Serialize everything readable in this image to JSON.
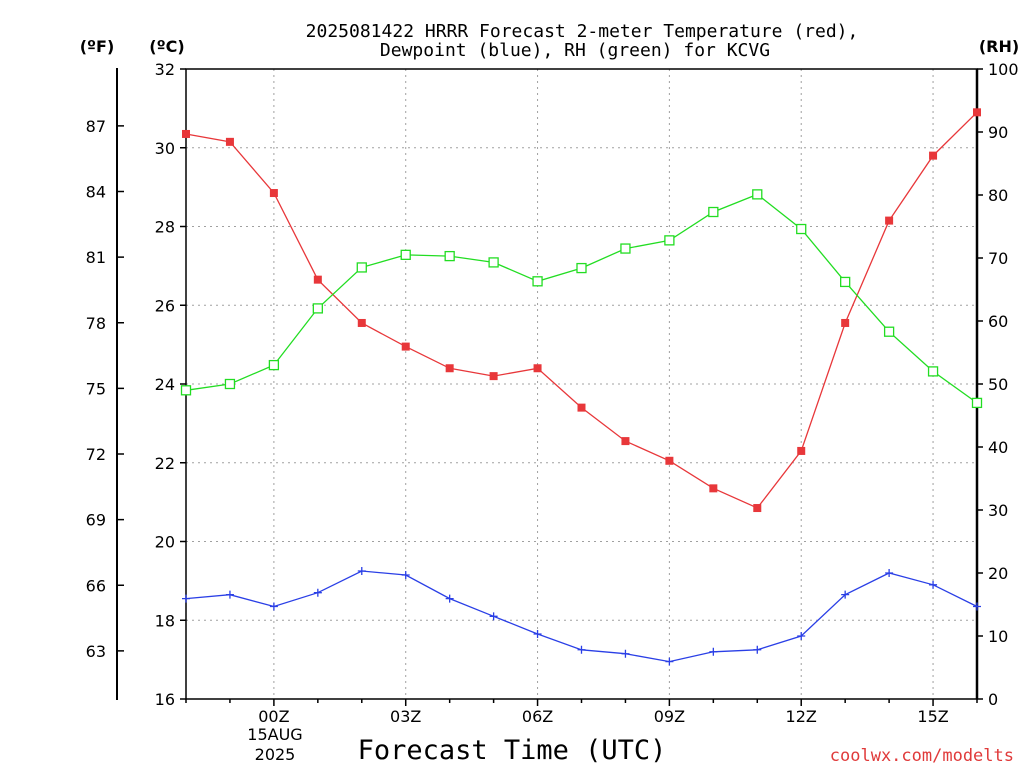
{
  "title_line1": "2025081422 HRRR Forecast 2-meter Temperature (red),",
  "title_line2": "Dewpoint (blue), RH (green) for KCVG",
  "unit_f": "(ºF)",
  "unit_c": "(ºC)",
  "unit_rh": "(RH)",
  "xlabel": "Forecast Time (UTC)",
  "watermark": "coolwx.com/modelts",
  "date_line1": "15AUG",
  "date_line2": "2025",
  "colors": {
    "temperature": "#e8373a",
    "dewpoint": "#2a3fe6",
    "rh": "#22dd22"
  },
  "chart_data": {
    "type": "line",
    "title": "2025081422 HRRR Forecast 2-meter Temperature (red), Dewpoint (blue), RH (green) for KCVG",
    "xlabel": "Forecast Time (UTC)",
    "x": [
      "22Z",
      "23Z",
      "00Z",
      "01Z",
      "02Z",
      "03Z",
      "04Z",
      "05Z",
      "06Z",
      "07Z",
      "08Z",
      "09Z",
      "10Z",
      "11Z",
      "12Z",
      "13Z",
      "14Z",
      "15Z",
      "16Z"
    ],
    "x_ticks": [
      "00Z",
      "03Z",
      "06Z",
      "09Z",
      "12Z",
      "15Z"
    ],
    "ylim_c": [
      16,
      32
    ],
    "ylim_f": [
      60.8,
      89.6
    ],
    "ylim_rh": [
      0,
      100
    ],
    "y_ticks_c": [
      "16",
      "18",
      "20",
      "22",
      "24",
      "26",
      "28",
      "30",
      "32"
    ],
    "y_ticks_f": [
      "63",
      "66",
      "69",
      "72",
      "75",
      "78",
      "81",
      "84",
      "87"
    ],
    "y_ticks_rh": [
      "0",
      "10",
      "20",
      "30",
      "40",
      "50",
      "60",
      "70",
      "80",
      "90",
      "100"
    ],
    "grid": true,
    "series": [
      {
        "name": "Temperature",
        "axis": "celsius",
        "marker": "filled-square",
        "values": [
          30.35,
          30.15,
          28.85,
          26.65,
          25.55,
          24.95,
          24.4,
          24.2,
          24.4,
          23.4,
          22.55,
          22.05,
          21.35,
          20.85,
          22.3,
          25.55,
          28.15,
          29.8,
          30.9
        ]
      },
      {
        "name": "Dewpoint",
        "axis": "celsius",
        "marker": "plus",
        "values": [
          18.55,
          18.65,
          18.35,
          18.7,
          19.25,
          19.15,
          18.55,
          18.1,
          17.65,
          17.25,
          17.15,
          16.95,
          17.2,
          17.25,
          17.6,
          18.65,
          19.2,
          18.9,
          18.35
        ]
      },
      {
        "name": "Relative Humidity",
        "axis": "rh",
        "marker": "open-square",
        "values": [
          49,
          50,
          53,
          62,
          68.5,
          70.5,
          70.3,
          69.3,
          66.3,
          68.4,
          71.5,
          72.8,
          77.3,
          80.1,
          74.6,
          66.2,
          58.3,
          52,
          47
        ]
      }
    ]
  }
}
